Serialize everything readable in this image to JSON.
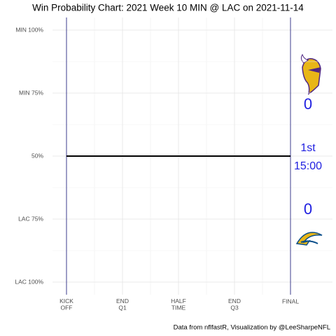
{
  "chart_data": {
    "type": "line",
    "title": "Win Probability Chart: 2021 Week 10 MIN @ LAC on 2021-11-14",
    "caption": "Data from nflfastR, Visualization by @LeeSharpeNFL",
    "x": [
      0,
      3600
    ],
    "series": [
      {
        "color": "#000000",
        "values": [
          50,
          50
        ]
      }
    ],
    "xlim": [
      -225,
      4275
    ],
    "xticks": [
      {
        "value": 0,
        "label": "KICK\nOFF"
      },
      {
        "value": 900,
        "label": "END\nQ1"
      },
      {
        "value": 1800,
        "label": "HALF\nTIME"
      },
      {
        "value": 2700,
        "label": "END\nQ3"
      },
      {
        "value": 3600,
        "label": "FINAL"
      }
    ],
    "ylim": [
      -5,
      105
    ],
    "yticks": [
      {
        "value": 100,
        "label": "MIN 100%"
      },
      {
        "value": 75,
        "label": "MIN 75%"
      },
      {
        "value": 50,
        "label": "50%"
      },
      {
        "value": 25,
        "label": "LAC 75%"
      },
      {
        "value": 0,
        "label": "LAC 100%"
      }
    ],
    "grid": true,
    "annotations": [
      "0",
      "1st",
      "15:00",
      "0"
    ],
    "annotation_color": "#1f1fe0",
    "boundary_color": "#3c3c8c"
  }
}
